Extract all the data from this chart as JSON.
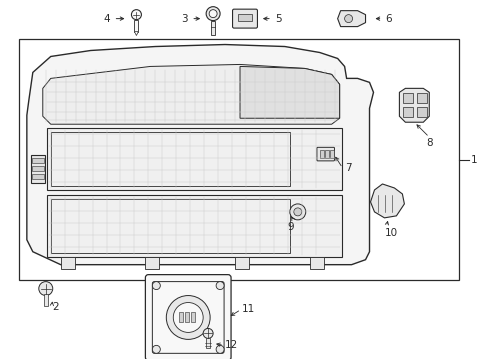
{
  "bg_color": "#ffffff",
  "line_color": "#2a2a2a",
  "fill_color": "#f8f8f8",
  "gray_fill": "#e8e8e8",
  "dark_gray": "#d0d0d0"
}
